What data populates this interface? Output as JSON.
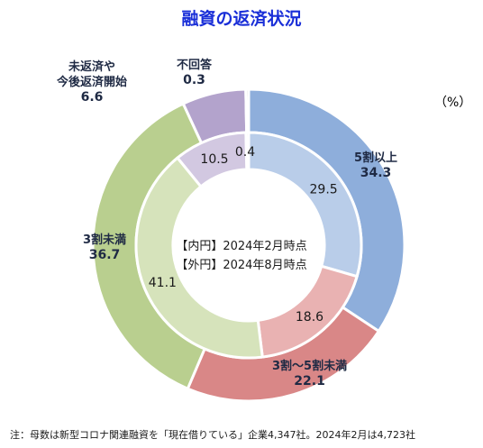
{
  "chart_data": {
    "type": "pie",
    "title": "融資の返済状況",
    "unit": "（%）",
    "center_labels": [
      "【内円】2024年2月時点",
      "【外円】2024年8月時点"
    ],
    "categories": [
      "5割以上",
      "3割～5割未満",
      "3割未満",
      "未返済や今後返済開始",
      "不回答"
    ],
    "colors_outer": [
      "#8eaedb",
      "#d98787",
      "#b9cf8f",
      "#b3a3cc",
      "#c9c9c9"
    ],
    "colors_inner": [
      "#b9cde9",
      "#e9b2b2",
      "#d6e3bb",
      "#d2c8e1",
      "#d9d9d9"
    ],
    "series": [
      {
        "name": "【外円】2024年8月時点",
        "values": [
          34.3,
          22.1,
          36.7,
          6.6,
          0.3
        ]
      },
      {
        "name": "【内円】2024年2月時点",
        "values": [
          29.5,
          18.6,
          41.1,
          10.5,
          0.4
        ]
      }
    ],
    "outer_labels": [
      {
        "text_lines": [
          "5割以上"
        ],
        "value": "34.3"
      },
      {
        "text_lines": [
          "3割～5割未満"
        ],
        "value": "22.1"
      },
      {
        "text_lines": [
          "3割未満"
        ],
        "value": "36.7"
      },
      {
        "text_lines": [
          "未返済や",
          "今後返済開始"
        ],
        "value": "6.6"
      },
      {
        "text_lines": [
          "不回答"
        ],
        "value": "0.3"
      }
    ],
    "inner_labels": [
      "29.5",
      "18.6",
      "41.1",
      "10.5",
      "0.4"
    ]
  },
  "footnote": "注：母数は新型コロナ関連融資を「現在借りている」企業4,347社。2024年2月は4,723社"
}
